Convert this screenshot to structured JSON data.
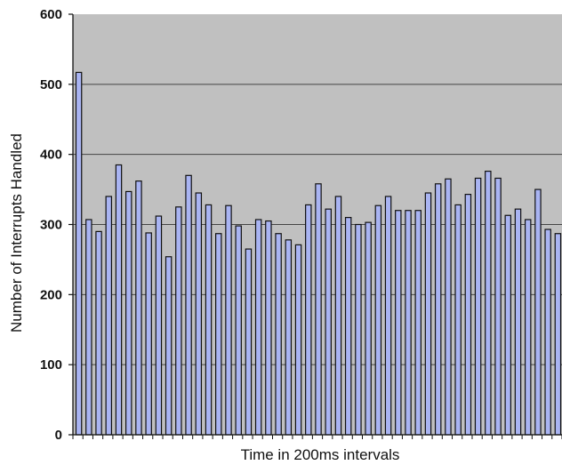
{
  "chart_data": {
    "type": "bar",
    "title": "",
    "xlabel": "Time in 200ms intervals",
    "ylabel": "Number of Interrupts Handled",
    "ylim": [
      0,
      600
    ],
    "yticks": [
      0,
      100,
      200,
      300,
      400,
      500,
      600
    ],
    "grid": true,
    "legend": "none",
    "colors": {
      "plot_background": "#c0c0c0",
      "bar_fill": "#a9b4f2",
      "bar_stroke": "#111111",
      "gridline": "#444444"
    },
    "series": [
      {
        "values": [
          517,
          307,
          290,
          340,
          385,
          347,
          362,
          288,
          312,
          254,
          325,
          370,
          345,
          328,
          287,
          327,
          298,
          265,
          307,
          305,
          287,
          278,
          271,
          328,
          358,
          322,
          340,
          310,
          300,
          303,
          327,
          340,
          320,
          320,
          320,
          345,
          358,
          365,
          328,
          343,
          366,
          376,
          366,
          313,
          322,
          307,
          350,
          293,
          287
        ]
      }
    ]
  }
}
